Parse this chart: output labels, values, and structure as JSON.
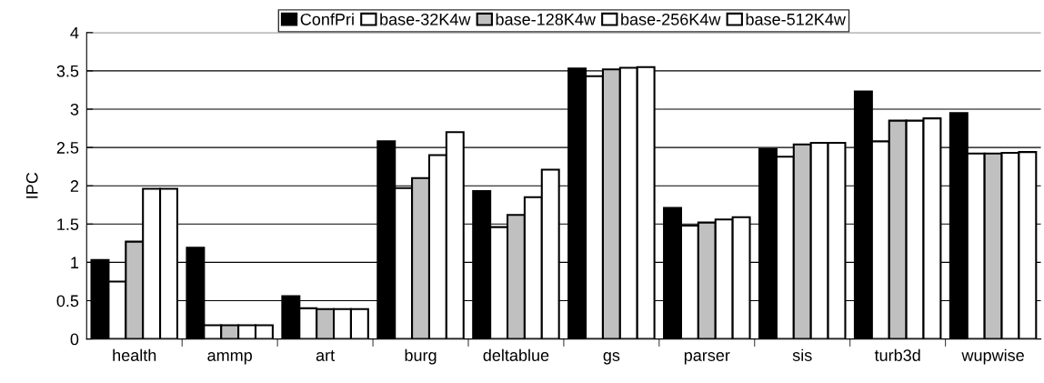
{
  "chart_data": {
    "type": "bar",
    "ylabel": "IPC",
    "categories": [
      "health",
      "ammp",
      "art",
      "burg",
      "deltablue",
      "gs",
      "parser",
      "sis",
      "turb3d",
      "wupwise"
    ],
    "series": [
      {
        "name": "ConfPri",
        "color": "#000000",
        "values": [
          1.03,
          1.19,
          0.56,
          2.58,
          1.93,
          3.53,
          1.71,
          2.48,
          3.23,
          2.95
        ]
      },
      {
        "name": "base-32K4w",
        "color": "#ffffff",
        "values": [
          0.75,
          0.18,
          0.4,
          1.97,
          1.46,
          3.43,
          1.48,
          2.38,
          2.58,
          2.42
        ]
      },
      {
        "name": "base-128K4w",
        "color": "#c0c0c0",
        "values": [
          1.27,
          0.18,
          0.39,
          2.1,
          1.62,
          3.52,
          1.52,
          2.54,
          2.85,
          2.42
        ]
      },
      {
        "name": "base-256K4w",
        "color": "#ffffff",
        "values": [
          1.96,
          0.18,
          0.39,
          2.4,
          1.85,
          3.54,
          1.56,
          2.56,
          2.85,
          2.43
        ]
      },
      {
        "name": "base-512K4w",
        "color": "#ffffff",
        "values": [
          1.96,
          0.18,
          0.39,
          2.7,
          2.21,
          3.55,
          1.59,
          2.56,
          2.88,
          2.44
        ]
      }
    ],
    "ylim": [
      0,
      4
    ],
    "yticks": [
      0,
      0.5,
      1,
      1.5,
      2,
      2.5,
      3,
      3.5,
      4
    ],
    "grid": "y",
    "legend": "top"
  }
}
